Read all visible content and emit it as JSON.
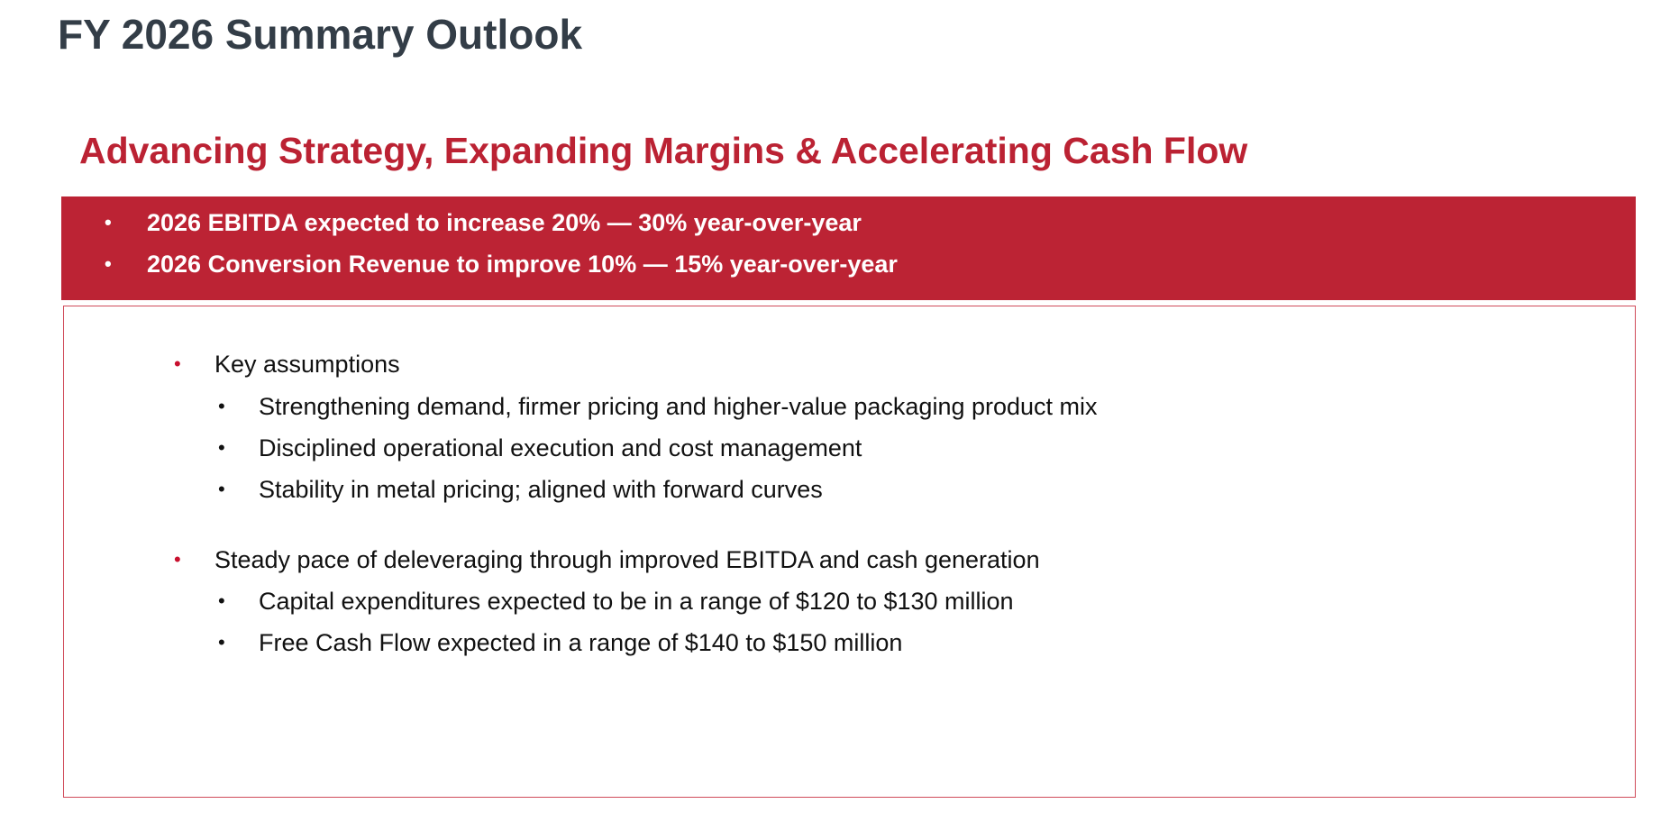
{
  "page_title": "FY 2026 Summary Outlook",
  "headline": "Advancing Strategy, Expanding Margins & Accelerating Cash Flow",
  "banner": {
    "bullets": [
      "2026 EBITDA expected to increase 20% — 30% year-over-year",
      "2026 Conversion Revenue to improve 10% — 15% year-over-year"
    ]
  },
  "details": {
    "sections": [
      {
        "label": "Key assumptions",
        "items": [
          "Strengthening demand, firmer pricing and higher-value packaging product mix",
          "Disciplined operational execution and cost management",
          "Stability in metal pricing; aligned with forward curves"
        ]
      },
      {
        "label": "Steady pace of deleveraging through improved EBITDA and cash generation",
        "items": [
          "Capital expenditures expected to be in a range of $120 to $130 million",
          "Free Cash Flow expected in a range of $140 to $150 million"
        ]
      }
    ]
  },
  "bullet_glyph": "•",
  "colors": {
    "title": "#333d47",
    "accent": "#bb2233",
    "banner_bg": "#bc2334",
    "banner_text": "#ffffff",
    "border": "#d04b5a",
    "body_text": "#111111"
  }
}
